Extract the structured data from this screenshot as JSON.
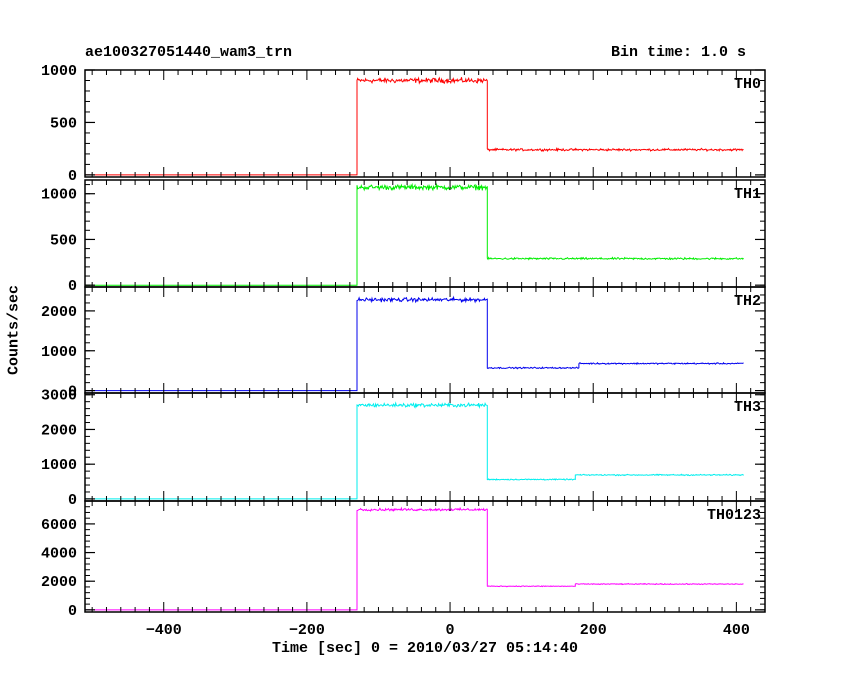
{
  "header": {
    "title": "ae100327051440_wam3_trn",
    "bin_time": "Bin time: 1.0 s"
  },
  "chart_data": {
    "type": "line",
    "xlabel": "Time [sec] 0 = 2010/03/27 05:14:40",
    "ylabel": "Counts/sec",
    "xlim": [
      -510,
      440
    ],
    "x_ticks": [
      -400,
      -200,
      0,
      200,
      400
    ],
    "x_tick_labels": [
      "−400",
      "−200",
      "0",
      "200",
      "400"
    ],
    "series": [
      {
        "name": "TH0",
        "color": "#ff0000",
        "ylim": [
          -20,
          1000
        ],
        "y_ticks": [
          0,
          500,
          1000
        ],
        "y_tick_labels": [
          "0",
          "500",
          "1000"
        ],
        "segments": [
          [
            -510,
            -130,
            0,
            0
          ],
          [
            -130,
            52,
            900,
            35
          ],
          [
            52,
            410,
            240,
            15
          ]
        ]
      },
      {
        "name": "TH1",
        "color": "#00ee00",
        "ylim": [
          -20,
          1150
        ],
        "y_ticks": [
          0,
          500,
          1000
        ],
        "y_tick_labels": [
          "0",
          "500",
          "1000"
        ],
        "segments": [
          [
            -510,
            -130,
            0,
            0
          ],
          [
            -130,
            52,
            1070,
            40
          ],
          [
            52,
            410,
            290,
            15
          ]
        ]
      },
      {
        "name": "TH2",
        "color": "#0000ee",
        "ylim": [
          -60,
          2600
        ],
        "y_ticks": [
          0,
          1000,
          2000
        ],
        "y_tick_labels": [
          "0",
          "1000",
          "2000"
        ],
        "segments": [
          [
            -510,
            -130,
            0,
            0
          ],
          [
            -130,
            52,
            2280,
            70
          ],
          [
            52,
            180,
            570,
            25
          ],
          [
            180,
            410,
            680,
            25
          ]
        ]
      },
      {
        "name": "TH3",
        "color": "#00eeee",
        "ylim": [
          -60,
          3050
        ],
        "y_ticks": [
          0,
          1000,
          2000,
          3000
        ],
        "y_tick_labels": [
          "0",
          "1000",
          "2000",
          "3000"
        ],
        "segments": [
          [
            -510,
            -130,
            0,
            0
          ],
          [
            -130,
            52,
            2700,
            80
          ],
          [
            52,
            175,
            560,
            25
          ],
          [
            175,
            410,
            690,
            25
          ]
        ]
      },
      {
        "name": "TH0123",
        "color": "#ff00ff",
        "ylim": [
          -150,
          7600
        ],
        "y_ticks": [
          0,
          2000,
          4000,
          6000
        ],
        "y_tick_labels": [
          "0",
          "2000",
          "4000",
          "6000"
        ],
        "segments": [
          [
            -510,
            -130,
            0,
            0
          ],
          [
            -130,
            52,
            7000,
            120
          ],
          [
            52,
            175,
            1650,
            45
          ],
          [
            175,
            410,
            1800,
            45
          ]
        ]
      }
    ]
  }
}
